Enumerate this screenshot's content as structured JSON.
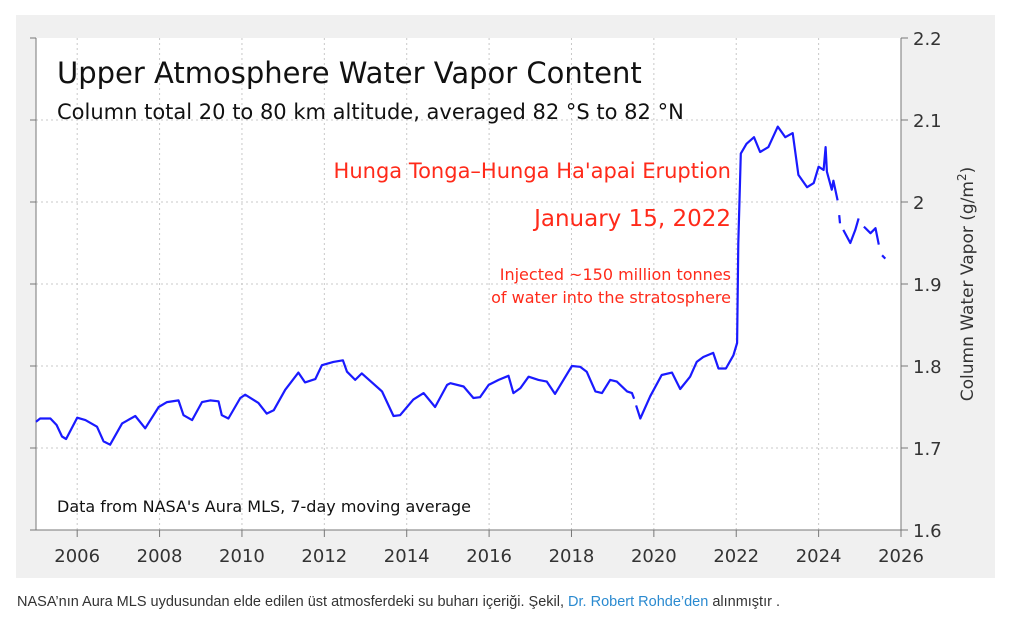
{
  "chart_data": {
    "type": "line",
    "title": "Upper Atmosphere Water Vapor Content",
    "subtitle": "Column total 20 to 80 km altitude, averaged 82 °S to 82 °N",
    "ylabel": "Column Water Vapor (g/m²)",
    "ylabel_base": "Column Water Vapor (g/m",
    "ylabel_sup": "2",
    "ylabel_close": ")",
    "xlabel": "",
    "xlim": [
      2005,
      2026
    ],
    "ylim": [
      1.6,
      2.2
    ],
    "grid": true,
    "xticks": [
      "2006",
      "2008",
      "2010",
      "2012",
      "2014",
      "2016",
      "2018",
      "2020",
      "2022",
      "2024",
      "2026"
    ],
    "yticks": [
      "1.6",
      "1.7",
      "1.8",
      "1.9",
      "2",
      "2.1",
      "2.2"
    ],
    "annotations": {
      "eruption": "Hunga Tonga–Hunga Ha'apai Eruption",
      "date": "January 15, 2022",
      "injected_line1": "Injected ~150 million tonnes",
      "injected_line2": "of water into the stratosphere",
      "source": "Data from NASA's Aura MLS, 7-day moving average"
    },
    "colors": {
      "line": "#1a1aff",
      "annotation": "#ff2a1a"
    },
    "series": [
      {
        "name": "Column water vapor",
        "segments": [
          [
            [
              2005.0,
              1.732
            ],
            [
              2005.1,
              1.736
            ],
            [
              2005.35,
              1.736
            ],
            [
              2005.5,
              1.728
            ],
            [
              2005.63,
              1.714
            ],
            [
              2005.73,
              1.711
            ],
            [
              2006.0,
              1.737
            ],
            [
              2006.2,
              1.734
            ],
            [
              2006.48,
              1.726
            ],
            [
              2006.64,
              1.708
            ],
            [
              2006.8,
              1.704
            ],
            [
              2007.09,
              1.73
            ],
            [
              2007.41,
              1.739
            ],
            [
              2007.65,
              1.724
            ],
            [
              2007.98,
              1.75
            ],
            [
              2008.18,
              1.756
            ],
            [
              2008.46,
              1.758
            ],
            [
              2008.58,
              1.74
            ],
            [
              2008.79,
              1.734
            ],
            [
              2009.03,
              1.756
            ],
            [
              2009.23,
              1.758
            ],
            [
              2009.43,
              1.757
            ],
            [
              2009.51,
              1.74
            ],
            [
              2009.67,
              1.736
            ],
            [
              2009.96,
              1.761
            ],
            [
              2010.08,
              1.765
            ],
            [
              2010.4,
              1.755
            ],
            [
              2010.6,
              1.742
            ],
            [
              2010.77,
              1.746
            ],
            [
              2011.05,
              1.771
            ],
            [
              2011.37,
              1.792
            ],
            [
              2011.53,
              1.78
            ],
            [
              2011.78,
              1.784
            ],
            [
              2011.94,
              1.801
            ],
            [
              2012.22,
              1.805
            ],
            [
              2012.45,
              1.807
            ],
            [
              2012.55,
              1.793
            ],
            [
              2012.75,
              1.783
            ],
            [
              2012.91,
              1.791
            ],
            [
              2013.4,
              1.769
            ],
            [
              2013.68,
              1.739
            ],
            [
              2013.84,
              1.74
            ],
            [
              2014.16,
              1.759
            ],
            [
              2014.41,
              1.767
            ],
            [
              2014.69,
              1.75
            ],
            [
              2014.98,
              1.777
            ],
            [
              2015.06,
              1.779
            ],
            [
              2015.38,
              1.775
            ],
            [
              2015.62,
              1.761
            ],
            [
              2015.78,
              1.762
            ],
            [
              2015.99,
              1.777
            ],
            [
              2016.23,
              1.783
            ],
            [
              2016.47,
              1.788
            ],
            [
              2016.59,
              1.767
            ],
            [
              2016.76,
              1.773
            ],
            [
              2016.96,
              1.787
            ],
            [
              2017.2,
              1.783
            ],
            [
              2017.4,
              1.781
            ],
            [
              2017.6,
              1.766
            ],
            [
              2018.01,
              1.8
            ],
            [
              2018.21,
              1.799
            ],
            [
              2018.37,
              1.793
            ],
            [
              2018.58,
              1.769
            ],
            [
              2018.74,
              1.767
            ],
            [
              2018.94,
              1.783
            ],
            [
              2019.1,
              1.781
            ],
            [
              2019.35,
              1.769
            ],
            [
              2019.47,
              1.767
            ],
            [
              2019.52,
              1.76
            ]
          ],
          [
            [
              2019.57,
              1.752
            ],
            [
              2019.67,
              1.736
            ],
            [
              2019.91,
              1.763
            ],
            [
              2020.19,
              1.789
            ],
            [
              2020.44,
              1.792
            ],
            [
              2020.64,
              1.772
            ],
            [
              2020.88,
              1.787
            ],
            [
              2021.04,
              1.805
            ],
            [
              2021.2,
              1.811
            ],
            [
              2021.44,
              1.816
            ],
            [
              2021.57,
              1.797
            ],
            [
              2021.75,
              1.797
            ],
            [
              2021.93,
              1.813
            ],
            [
              2022.02,
              1.828
            ],
            [
              2022.05,
              1.95
            ],
            [
              2022.11,
              2.059
            ],
            [
              2022.25,
              2.071
            ],
            [
              2022.43,
              2.079
            ],
            [
              2022.58,
              2.061
            ],
            [
              2022.78,
              2.067
            ],
            [
              2023.01,
              2.092
            ],
            [
              2023.19,
              2.079
            ],
            [
              2023.37,
              2.084
            ],
            [
              2023.51,
              2.033
            ],
            [
              2023.72,
              2.018
            ],
            [
              2023.88,
              2.023
            ],
            [
              2024.0,
              2.043
            ],
            [
              2024.12,
              2.039
            ],
            [
              2024.17,
              2.067
            ],
            [
              2024.2,
              2.037
            ],
            [
              2024.32,
              2.015
            ],
            [
              2024.36,
              2.026
            ],
            [
              2024.46,
              2.002
            ]
          ],
          [
            [
              2024.5,
              1.984
            ],
            [
              2024.52,
              1.974
            ]
          ],
          [
            [
              2024.6,
              1.966
            ],
            [
              2024.77,
              1.95
            ],
            [
              2024.89,
              1.966
            ],
            [
              2024.97,
              1.98
            ]
          ],
          [
            [
              2025.1,
              1.97
            ],
            [
              2025.26,
              1.962
            ],
            [
              2025.38,
              1.968
            ],
            [
              2025.46,
              1.948
            ]
          ],
          [
            [
              2025.54,
              1.935
            ],
            [
              2025.62,
              1.931
            ]
          ]
        ]
      }
    ]
  },
  "caption": {
    "text_before": "NASA’nın Aura MLS uydusundan elde edilen üst atmosferdeki su buharı içeriği. Şekil, ",
    "link": "Dr. Robert Rohde’den",
    "text_after": " alınmıştır ."
  }
}
